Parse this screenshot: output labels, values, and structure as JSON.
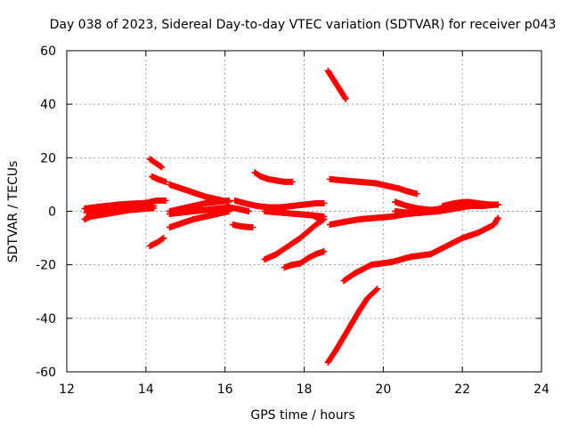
{
  "chart_data": {
    "type": "scatter",
    "title": "Day 038 of 2023, Sidereal Day-to-day VTEC variation (SDTVAR) for receiver p043",
    "xlabel": "GPS time / hours",
    "ylabel": "SDTVAR / TECUs",
    "xlim": [
      12,
      24
    ],
    "ylim": [
      -60,
      60
    ],
    "xticks": [
      12,
      14,
      16,
      18,
      20,
      22,
      24
    ],
    "yticks": [
      -60,
      -40,
      -20,
      0,
      20,
      40,
      60
    ],
    "grid": true,
    "marker": "+",
    "color": "#ff0000",
    "tracks": [
      {
        "x": [
          12.45,
          12.6,
          12.8,
          13.0,
          13.2,
          13.4,
          13.6,
          13.8,
          14.0,
          14.2
        ],
        "y": [
          -3,
          -2,
          -1.5,
          -1,
          -0.5,
          0,
          0.5,
          1,
          1.5,
          2
        ]
      },
      {
        "x": [
          12.45,
          12.7,
          13.0,
          13.3,
          13.6,
          13.9,
          14.2
        ],
        "y": [
          1,
          1.5,
          2,
          2.5,
          2.8,
          3,
          3.5
        ]
      },
      {
        "x": [
          12.5,
          12.8,
          13.1,
          13.4,
          13.7,
          14.0,
          14.2
        ],
        "y": [
          -0.5,
          -0.2,
          0,
          0.3,
          0.6,
          1,
          1.2
        ]
      },
      {
        "x": [
          12.55,
          12.9,
          13.2,
          13.5,
          13.8,
          14.0
        ],
        "y": [
          0.5,
          1.2,
          1.8,
          2.2,
          2.6,
          2.8
        ]
      },
      {
        "x": [
          14.1,
          14.2,
          14.3,
          14.4
        ],
        "y": [
          19.5,
          18.5,
          17.5,
          16.5
        ]
      },
      {
        "x": [
          14.15,
          14.3,
          14.5
        ],
        "y": [
          13,
          12,
          11
        ]
      },
      {
        "x": [
          14.1,
          14.3,
          14.45
        ],
        "y": [
          -13,
          -11.5,
          -10
        ]
      },
      {
        "x": [
          14.1,
          14.3,
          14.5
        ],
        "y": [
          3.5,
          4,
          4
        ]
      },
      {
        "x": [
          14.6,
          14.9,
          15.2,
          15.5,
          15.8,
          16.1
        ],
        "y": [
          10,
          8.5,
          7,
          5.5,
          4.5,
          3.5
        ]
      },
      {
        "x": [
          14.6,
          14.9,
          15.2,
          15.5,
          15.8,
          16.1
        ],
        "y": [
          0,
          1,
          2,
          3,
          3.5,
          4
        ]
      },
      {
        "x": [
          14.6,
          14.9,
          15.2,
          15.5,
          15.8,
          16.1
        ],
        "y": [
          -6,
          -4.5,
          -3,
          -2,
          -1,
          0
        ]
      },
      {
        "x": [
          14.6,
          14.9,
          15.2,
          15.5,
          15.8,
          16.1,
          16.3,
          16.6
        ],
        "y": [
          -1,
          -0.5,
          0,
          0.5,
          1,
          1.5,
          1,
          0
        ]
      },
      {
        "x": [
          16.2,
          16.35,
          16.5,
          16.7
        ],
        "y": [
          -5,
          -5.5,
          -5.8,
          -6
        ]
      },
      {
        "x": [
          16.25,
          16.5,
          16.8,
          17.1,
          17.4,
          17.7,
          18.0,
          18.3,
          18.5
        ],
        "y": [
          4,
          3,
          2,
          1.5,
          1.5,
          2,
          2.5,
          3,
          3
        ]
      },
      {
        "x": [
          16.75,
          16.9,
          17.1,
          17.3,
          17.5,
          17.7
        ],
        "y": [
          14.5,
          13,
          12,
          11.5,
          11,
          11
        ]
      },
      {
        "x": [
          17.0,
          17.3,
          17.6,
          17.9,
          18.1,
          18.3,
          18.5
        ],
        "y": [
          -18,
          -16,
          -13,
          -10,
          -7.5,
          -5,
          -3
        ]
      },
      {
        "x": [
          17.5,
          17.7,
          17.9,
          18.1,
          18.3,
          18.5
        ],
        "y": [
          -21,
          -20,
          -19.5,
          -17.5,
          -16,
          -15
        ]
      },
      {
        "x": [
          17.0,
          17.4,
          17.8,
          18.2,
          18.5
        ],
        "y": [
          0,
          -0.5,
          -1,
          -1.5,
          -2
        ]
      },
      {
        "x": [
          18.2,
          18.35,
          18.5
        ],
        "y": [
          -1.5,
          -2.5,
          -3
        ]
      },
      {
        "x": [
          18.6,
          18.75,
          18.9,
          19.05
        ],
        "y": [
          52.5,
          49,
          45.5,
          42
        ]
      },
      {
        "x": [
          18.65,
          19.0,
          19.4,
          19.8,
          20.1,
          20.4,
          20.6,
          20.85
        ],
        "y": [
          12,
          11.5,
          11,
          10.5,
          9.5,
          8.5,
          7.5,
          6.5
        ]
      },
      {
        "x": [
          18.65,
          19.0,
          19.4,
          19.8,
          20.2,
          20.6,
          21.0,
          21.4,
          21.8,
          22.2,
          22.6,
          22.9
        ],
        "y": [
          -5,
          -4,
          -3,
          -2.5,
          -2,
          -1,
          -0.5,
          0,
          1,
          2,
          2.5,
          2.5
        ]
      },
      {
        "x": [
          19.0,
          19.3,
          19.7,
          20.2,
          20.7,
          21.2,
          21.6,
          22.0,
          22.4,
          22.8,
          22.9
        ],
        "y": [
          -26,
          -23,
          -20,
          -19,
          -17,
          -16,
          -13,
          -10,
          -8,
          -5,
          -2.5
        ]
      },
      {
        "x": [
          18.6,
          18.8,
          19.0,
          19.2,
          19.4,
          19.6,
          19.85
        ],
        "y": [
          -56.5,
          -52,
          -47,
          -42,
          -37,
          -32.5,
          -29
        ]
      },
      {
        "x": [
          20.3,
          20.6,
          20.9,
          21.2,
          21.5,
          21.8,
          22.0,
          22.2
        ],
        "y": [
          3.5,
          2,
          1,
          0.5,
          1,
          2,
          3,
          3.5
        ]
      },
      {
        "x": [
          20.3,
          20.6,
          20.9,
          21.2,
          21.5,
          21.8,
          22.1,
          22.5,
          22.9
        ],
        "y": [
          0,
          -0.5,
          -0.5,
          0,
          0.5,
          1.5,
          2,
          2,
          2.5
        ]
      },
      {
        "x": [
          21.5,
          21.8,
          22.1,
          22.4,
          22.7,
          22.9
        ],
        "y": [
          2,
          3,
          3.5,
          3,
          2.5,
          2.5
        ]
      }
    ]
  }
}
